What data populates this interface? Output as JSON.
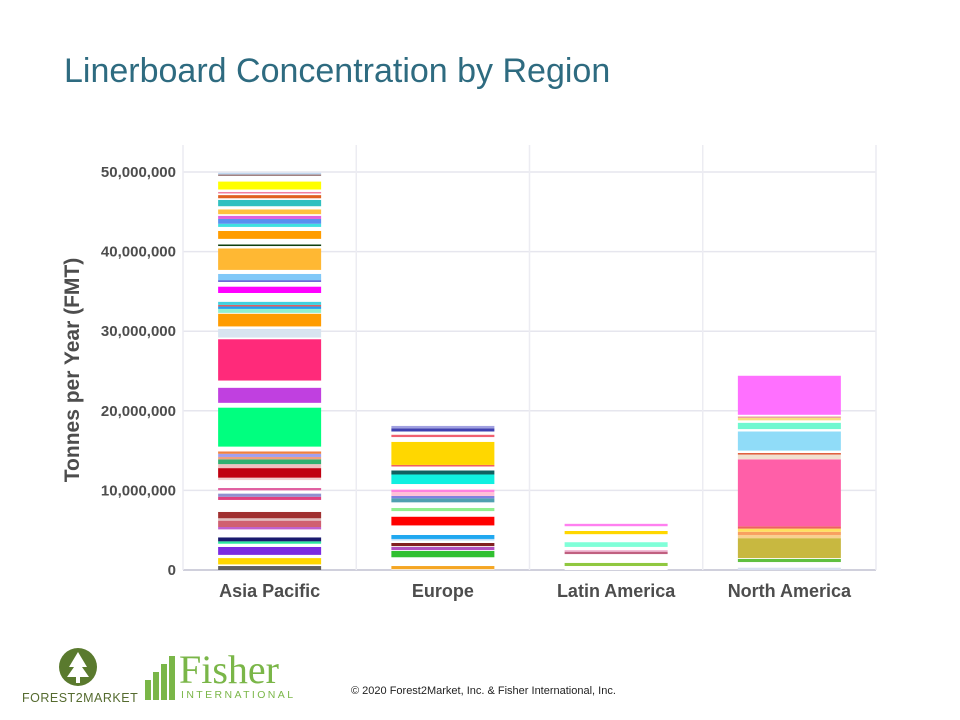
{
  "title": "Linerboard Concentration by Region",
  "footer": {
    "copyright": "© 2020 Forest2Market, Inc. & Fisher International, Inc.",
    "logo_forest2market": "FOREST2MARKET",
    "logo_fisher_name": "Fisher",
    "logo_fisher_sub": "INTERNATIONAL"
  },
  "chart_data": {
    "type": "bar",
    "stacked": true,
    "title": "",
    "xlabel": "",
    "ylabel": "Tonnes per Year (FMT)",
    "ylim": [
      0,
      50000000
    ],
    "yticks": [
      0,
      10000000,
      20000000,
      30000000,
      40000000,
      50000000
    ],
    "ytick_labels": [
      "0",
      "10,000,000",
      "20,000,000",
      "30,000,000",
      "40,000,000",
      "50,000,000"
    ],
    "grid": true,
    "legend": "none",
    "categories": [
      "Asia Pacific",
      "Europe",
      "Latin America",
      "North America"
    ],
    "totals": [
      50300000,
      18000000,
      5800000,
      24600000
    ],
    "segments_note_units": "millions of tonnes, stacked bottom to top, white = separator between producers",
    "segments": [
      [
        [
          0.5,
          "#606060"
        ],
        [
          0.2,
          "#ffffff"
        ],
        [
          0.8,
          "#ffd700"
        ],
        [
          0.4,
          "#ffffff"
        ],
        [
          1.0,
          "#7b2be2"
        ],
        [
          0.4,
          "#ffffff"
        ],
        [
          0.3,
          "#2de8a0"
        ],
        [
          0.5,
          "#1a1a6e"
        ],
        [
          1.0,
          "#ffffff"
        ],
        [
          0.3,
          "#c060d0"
        ],
        [
          0.8,
          "#d06070"
        ],
        [
          0.3,
          "#e0c0c0"
        ],
        [
          0.8,
          "#a03030"
        ],
        [
          1.5,
          "#ffffff"
        ],
        [
          0.4,
          "#e04080"
        ],
        [
          0.4,
          "#9090d0"
        ],
        [
          0.4,
          "#ffffff"
        ],
        [
          0.3,
          "#e060a0"
        ],
        [
          1.0,
          "#ffffff"
        ],
        [
          0.3,
          "#f0d0d0"
        ],
        [
          1.2,
          "#c00010"
        ],
        [
          0.5,
          "#f0c0c0"
        ],
        [
          0.6,
          "#30b070"
        ],
        [
          0.3,
          "#f0a080"
        ],
        [
          0.4,
          "#a0a0f0"
        ],
        [
          0.3,
          "#f08040"
        ],
        [
          0.6,
          "#ffffff"
        ],
        [
          4.9,
          "#00ff7f"
        ],
        [
          0.6,
          "#ffffff"
        ],
        [
          1.9,
          "#c040e0"
        ],
        [
          0.9,
          "#ffffff"
        ],
        [
          5.2,
          "#ff2a7a"
        ],
        [
          0.2,
          "#ffffff"
        ],
        [
          1.1,
          "#d8e4f0"
        ],
        [
          0.3,
          "#ffffff"
        ],
        [
          1.6,
          "#ff9c00"
        ],
        [
          0.1,
          "#ffffff"
        ],
        [
          0.5,
          "#90f0d0"
        ],
        [
          0.3,
          "#20a0f0"
        ],
        [
          0.2,
          "#e06060"
        ],
        [
          0.4,
          "#40d0e0"
        ],
        [
          1.1,
          "#ffffff"
        ],
        [
          0.8,
          "#ff00ff"
        ],
        [
          0.6,
          "#ffffff"
        ],
        [
          0.2,
          "#5050d0"
        ],
        [
          0.8,
          "#80c8f8"
        ],
        [
          0.5,
          "#ffffff"
        ],
        [
          2.7,
          "#ffb833"
        ],
        [
          0.3,
          "#ffffff"
        ],
        [
          0.2,
          "#104010"
        ],
        [
          0.7,
          "#ffffff"
        ],
        [
          1.0,
          "#ff9c00"
        ],
        [
          0.5,
          "#ffffff"
        ],
        [
          0.4,
          "#40e0e0"
        ],
        [
          0.6,
          "#5890f0"
        ],
        [
          0.4,
          "#e060e0"
        ],
        [
          0.2,
          "#ffffff"
        ],
        [
          0.6,
          "#ffc040"
        ],
        [
          0.4,
          "#ffffff"
        ],
        [
          0.8,
          "#30c0c0"
        ],
        [
          0.2,
          "#ffffff"
        ],
        [
          0.4,
          "#e06020"
        ],
        [
          0.2,
          "#ffffff"
        ],
        [
          0.2,
          "#f080a0"
        ],
        [
          0.3,
          "#ffffff"
        ],
        [
          1.0,
          "#ffff00"
        ],
        [
          0.7,
          "#ffffff"
        ],
        [
          0.2,
          "#a08080"
        ],
        [
          0.2,
          "#c0d8f0"
        ]
      ],
      [
        [
          0.1,
          "#ffffff"
        ],
        [
          0.4,
          "#f5a623"
        ],
        [
          1.1,
          "#ffffff"
        ],
        [
          0.8,
          "#30c030"
        ],
        [
          0.1,
          "#ffffff"
        ],
        [
          0.4,
          "#b050c0"
        ],
        [
          0.1,
          "#ffffff"
        ],
        [
          0.4,
          "#802020"
        ],
        [
          0.3,
          "#ffffff"
        ],
        [
          0.2,
          "#c0e0f8"
        ],
        [
          0.5,
          "#20a8f0"
        ],
        [
          1.2,
          "#ffffff"
        ],
        [
          1.1,
          "#ff0000"
        ],
        [
          0.7,
          "#ffffff"
        ],
        [
          0.4,
          "#90f090"
        ],
        [
          0.7,
          "#ffffff"
        ],
        [
          0.5,
          "#50a0b0"
        ],
        [
          0.3,
          "#8080e0"
        ],
        [
          0.5,
          "#ffc0d8"
        ],
        [
          0.3,
          "#ff80e0"
        ],
        [
          0.7,
          "#ffffff"
        ],
        [
          1.2,
          "#10f0e0"
        ],
        [
          0.5,
          "#106060"
        ],
        [
          0.5,
          "#ffffff"
        ],
        [
          0.2,
          "#f06060"
        ],
        [
          2.9,
          "#ffd700"
        ],
        [
          0.6,
          "#ffffff"
        ],
        [
          0.3,
          "#f06070"
        ],
        [
          0.4,
          "#ffffff"
        ],
        [
          0.4,
          "#4040b0"
        ],
        [
          0.3,
          "#a0a0e0"
        ]
      ],
      [
        [
          0.5,
          "#ffffff"
        ],
        [
          0.4,
          "#90c840"
        ],
        [
          1.1,
          "#ffffff"
        ],
        [
          0.3,
          "#c06080"
        ],
        [
          0.2,
          "#f0b0d0"
        ],
        [
          0.4,
          "#ffffff"
        ],
        [
          0.6,
          "#80ffd8"
        ],
        [
          1.0,
          "#ffffff"
        ],
        [
          0.4,
          "#ffd700"
        ],
        [
          0.6,
          "#ffffff"
        ],
        [
          0.3,
          "#ff80f0"
        ]
      ],
      [
        [
          0.3,
          "#d8e0f0"
        ],
        [
          0.7,
          "#ffffff"
        ],
        [
          0.4,
          "#60c040"
        ],
        [
          0.1,
          "#ffffff"
        ],
        [
          2.5,
          "#c8b840"
        ],
        [
          0.4,
          "#f8d090"
        ],
        [
          0.4,
          "#f8a060"
        ],
        [
          0.4,
          "#ffe060"
        ],
        [
          0.3,
          "#f06060"
        ],
        [
          8.4,
          "#ff5fa8"
        ],
        [
          0.6,
          "#f0e0d0"
        ],
        [
          0.2,
          "#e06040"
        ],
        [
          0.3,
          "#ffffff"
        ],
        [
          2.4,
          "#90dcf8"
        ],
        [
          0.3,
          "#ffffff"
        ],
        [
          0.8,
          "#70f8d0"
        ],
        [
          0.3,
          "#ffffff"
        ],
        [
          0.3,
          "#f8e080"
        ],
        [
          0.2,
          "#f0a0a0"
        ],
        [
          0.2,
          "#ffffff"
        ],
        [
          4.9,
          "#ff70ff"
        ]
      ]
    ]
  }
}
